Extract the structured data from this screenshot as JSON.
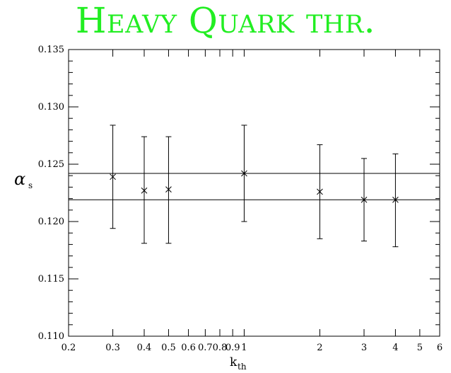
{
  "title": "Heavy Quark thr.",
  "chart_data": {
    "type": "scatter",
    "title": "Heavy Quark thr.",
    "xlabel_main": "k",
    "xlabel_sub": "th",
    "ylabel_main": "α",
    "ylabel_sub": "s",
    "xscale": "log",
    "xlim": [
      0.2,
      6
    ],
    "ylim": [
      0.11,
      0.135
    ],
    "x_ticks_major": [
      {
        "v": 0.2,
        "label": "0.2"
      },
      {
        "v": 0.3,
        "label": "0.3"
      },
      {
        "v": 0.4,
        "label": "0.4"
      },
      {
        "v": 0.5,
        "label": "0.5"
      },
      {
        "v": 0.6,
        "label": "0.6"
      },
      {
        "v": 0.7,
        "label": "0.7"
      },
      {
        "v": 0.8,
        "label": "0.8"
      },
      {
        "v": 0.9,
        "label": "0.9"
      },
      {
        "v": 1,
        "label": "1"
      },
      {
        "v": 2,
        "label": "2"
      },
      {
        "v": 3,
        "label": "3"
      },
      {
        "v": 4,
        "label": "4"
      },
      {
        "v": 5,
        "label": "5"
      },
      {
        "v": 6,
        "label": "6"
      }
    ],
    "y_ticks_major": [
      {
        "v": 0.11,
        "label": "0.110"
      },
      {
        "v": 0.115,
        "label": "0.115"
      },
      {
        "v": 0.12,
        "label": "0.120"
      },
      {
        "v": 0.125,
        "label": "0.125"
      },
      {
        "v": 0.13,
        "label": "0.130"
      },
      {
        "v": 0.135,
        "label": "0.135"
      }
    ],
    "y_minor_step": 0.001,
    "hlines": [
      0.1242,
      0.1219
    ],
    "points": [
      {
        "x": 0.3,
        "y": 0.1239,
        "ylow": 0.1194,
        "yhigh": 0.1284
      },
      {
        "x": 0.4,
        "y": 0.1227,
        "ylow": 0.1181,
        "yhigh": 0.1274
      },
      {
        "x": 0.5,
        "y": 0.1228,
        "ylow": 0.1181,
        "yhigh": 0.1274
      },
      {
        "x": 1.0,
        "y": 0.1242,
        "ylow": 0.12,
        "yhigh": 0.1284
      },
      {
        "x": 2.0,
        "y": 0.1226,
        "ylow": 0.1185,
        "yhigh": 0.1267
      },
      {
        "x": 3.0,
        "y": 0.1219,
        "ylow": 0.1183,
        "yhigh": 0.1255
      },
      {
        "x": 4.0,
        "y": 0.1219,
        "ylow": 0.1178,
        "yhigh": 0.1259
      }
    ],
    "grid": false,
    "legend": "none"
  }
}
